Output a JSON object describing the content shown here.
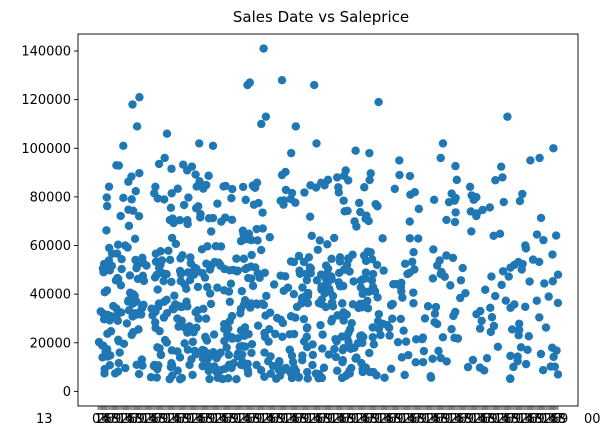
{
  "chart_data": {
    "type": "scatter",
    "title": "Sales Date vs Saleprice",
    "xlabel": "",
    "ylabel": "",
    "grid": false,
    "legend": "none",
    "x_axis": {
      "kind": "categorical",
      "category_count": 1000,
      "tick_labels_overlapping": true,
      "first_tick_label_prefix": "13",
      "last_tick_label_suffix": "00"
    },
    "ylim": [
      -6000,
      147000
    ],
    "yticks": [
      0,
      20000,
      40000,
      60000,
      80000,
      100000,
      120000,
      140000
    ],
    "ytick_labels": [
      "0",
      "20000",
      "40000",
      "60000",
      "80000",
      "100000",
      "120000",
      "140000"
    ],
    "marker_color": "#1f77b4",
    "point_count_estimate": 1000,
    "y_distribution": {
      "range": [
        4000,
        141000
      ],
      "bulk_range": [
        5000,
        55000
      ],
      "sparse_above": 70000
    },
    "series": [
      {
        "notable_points": [
          {
            "x_fraction": 0.04,
            "y": 93000
          },
          {
            "x_fraction": 0.055,
            "y": 101000
          },
          {
            "x_fraction": 0.075,
            "y": 118000
          },
          {
            "x_fraction": 0.085,
            "y": 109000
          },
          {
            "x_fraction": 0.09,
            "y": 121000
          },
          {
            "x_fraction": 0.145,
            "y": 96000
          },
          {
            "x_fraction": 0.15,
            "y": 106000
          },
          {
            "x_fraction": 0.22,
            "y": 102000
          },
          {
            "x_fraction": 0.25,
            "y": 101000
          },
          {
            "x_fraction": 0.325,
            "y": 126000
          },
          {
            "x_fraction": 0.33,
            "y": 127000
          },
          {
            "x_fraction": 0.355,
            "y": 110000
          },
          {
            "x_fraction": 0.365,
            "y": 113000
          },
          {
            "x_fraction": 0.36,
            "y": 141000
          },
          {
            "x_fraction": 0.4,
            "y": 128000
          },
          {
            "x_fraction": 0.4,
            "y": 89000
          },
          {
            "x_fraction": 0.42,
            "y": 98000
          },
          {
            "x_fraction": 0.43,
            "y": 109000
          },
          {
            "x_fraction": 0.47,
            "y": 126000
          },
          {
            "x_fraction": 0.475,
            "y": 102000
          },
          {
            "x_fraction": 0.5,
            "y": 87000
          },
          {
            "x_fraction": 0.52,
            "y": 88000
          },
          {
            "x_fraction": 0.56,
            "y": 99000
          },
          {
            "x_fraction": 0.59,
            "y": 98000
          },
          {
            "x_fraction": 0.61,
            "y": 119000
          },
          {
            "x_fraction": 0.655,
            "y": 95000
          },
          {
            "x_fraction": 0.745,
            "y": 96000
          },
          {
            "x_fraction": 0.75,
            "y": 102000
          },
          {
            "x_fraction": 0.78,
            "y": 87000
          },
          {
            "x_fraction": 0.82,
            "y": 80000
          },
          {
            "x_fraction": 0.86,
            "y": 64000
          },
          {
            "x_fraction": 0.89,
            "y": 113000
          },
          {
            "x_fraction": 0.94,
            "y": 95000
          },
          {
            "x_fraction": 0.96,
            "y": 96000
          },
          {
            "x_fraction": 0.99,
            "y": 100000
          },
          {
            "x_fraction": 0.905,
            "y": 52000
          },
          {
            "x_fraction": 1.0,
            "y": 7000
          },
          {
            "x_fraction": 1.0,
            "y": 48000
          }
        ]
      }
    ]
  }
}
